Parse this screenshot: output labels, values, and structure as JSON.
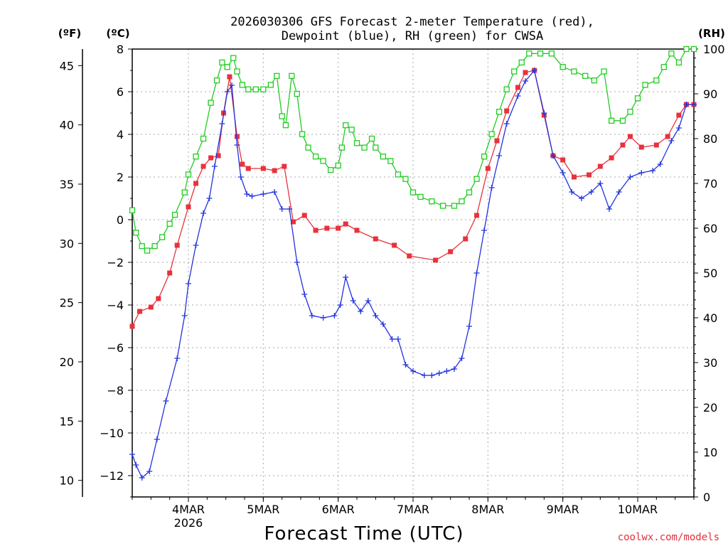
{
  "chart_data": {
    "type": "line",
    "title_line1": "2026030306 GFS Forecast 2-meter Temperature (red),",
    "title_line2": "Dewpoint (blue), RH (green) for CWSA",
    "xlabel": "Forecast Time (UTC)",
    "credit": "coolwx.com/models",
    "unit_left_f": "(ºF)",
    "unit_left_c": "(ºC)",
    "unit_right": "(RH)",
    "xlim_days": [
      3.25,
      10.75
    ],
    "x_ticks": [
      {
        "day": 4,
        "label": "4MAR",
        "sublabel": "2026"
      },
      {
        "day": 5,
        "label": "5MAR",
        "sublabel": ""
      },
      {
        "day": 6,
        "label": "6MAR",
        "sublabel": ""
      },
      {
        "day": 7,
        "label": "7MAR",
        "sublabel": ""
      },
      {
        "day": 8,
        "label": "8MAR",
        "sublabel": ""
      },
      {
        "day": 9,
        "label": "9MAR",
        "sublabel": ""
      },
      {
        "day": 10,
        "label": "10MAR",
        "sublabel": ""
      }
    ],
    "y_celsius": {
      "min": -13,
      "max": 8,
      "ticks": [
        8,
        6,
        4,
        2,
        0,
        -2,
        -4,
        -6,
        -8,
        -10,
        -12
      ]
    },
    "y_fahrenheit_ticks": [
      45,
      40,
      35,
      30,
      25,
      20,
      15,
      10
    ],
    "y_rh": {
      "min": 0,
      "max": 100,
      "ticks": [
        100,
        90,
        80,
        70,
        60,
        50,
        40,
        30,
        20,
        10,
        0
      ]
    },
    "series": [
      {
        "name": "Temperature",
        "units": "C",
        "color": "#e8323c",
        "marker": "square-filled",
        "points": [
          [
            3.25,
            -5.0
          ],
          [
            3.35,
            -4.3
          ],
          [
            3.5,
            -4.1
          ],
          [
            3.6,
            -3.7
          ],
          [
            3.75,
            -2.5
          ],
          [
            3.85,
            -1.2
          ],
          [
            4.0,
            0.6
          ],
          [
            4.1,
            1.7
          ],
          [
            4.2,
            2.5
          ],
          [
            4.3,
            2.9
          ],
          [
            4.4,
            3.0
          ],
          [
            4.47,
            5.0
          ],
          [
            4.55,
            6.7
          ],
          [
            4.65,
            3.9
          ],
          [
            4.72,
            2.6
          ],
          [
            4.8,
            2.4
          ],
          [
            5.0,
            2.4
          ],
          [
            5.15,
            2.3
          ],
          [
            5.28,
            2.5
          ],
          [
            5.4,
            -0.1
          ],
          [
            5.55,
            0.2
          ],
          [
            5.7,
            -0.5
          ],
          [
            5.85,
            -0.4
          ],
          [
            6.0,
            -0.4
          ],
          [
            6.1,
            -0.2
          ],
          [
            6.25,
            -0.5
          ],
          [
            6.5,
            -0.9
          ],
          [
            6.75,
            -1.2
          ],
          [
            6.95,
            -1.7
          ],
          [
            7.3,
            -1.9
          ],
          [
            7.5,
            -1.5
          ],
          [
            7.7,
            -0.9
          ],
          [
            7.85,
            0.2
          ],
          [
            8.0,
            2.4
          ],
          [
            8.12,
            3.7
          ],
          [
            8.25,
            5.1
          ],
          [
            8.4,
            6.2
          ],
          [
            8.5,
            6.9
          ],
          [
            8.62,
            7.0
          ],
          [
            8.75,
            4.9
          ],
          [
            8.87,
            3.0
          ],
          [
            9.0,
            2.8
          ],
          [
            9.15,
            2.0
          ],
          [
            9.35,
            2.1
          ],
          [
            9.5,
            2.5
          ],
          [
            9.65,
            2.9
          ],
          [
            9.8,
            3.5
          ],
          [
            9.9,
            3.9
          ],
          [
            10.05,
            3.4
          ],
          [
            10.25,
            3.5
          ],
          [
            10.4,
            3.9
          ],
          [
            10.55,
            4.9
          ],
          [
            10.65,
            5.4
          ],
          [
            10.75,
            5.4
          ]
        ]
      },
      {
        "name": "Dewpoint",
        "units": "C",
        "color": "#2233dd",
        "marker": "plus",
        "points": [
          [
            3.25,
            -11.0
          ],
          [
            3.3,
            -11.5
          ],
          [
            3.38,
            -12.1
          ],
          [
            3.48,
            -11.8
          ],
          [
            3.58,
            -10.3
          ],
          [
            3.7,
            -8.5
          ],
          [
            3.85,
            -6.5
          ],
          [
            3.95,
            -4.5
          ],
          [
            4.0,
            -3.0
          ],
          [
            4.1,
            -1.2
          ],
          [
            4.2,
            0.3
          ],
          [
            4.28,
            1.0
          ],
          [
            4.35,
            2.5
          ],
          [
            4.45,
            4.5
          ],
          [
            4.52,
            6.0
          ],
          [
            4.58,
            6.3
          ],
          [
            4.65,
            3.5
          ],
          [
            4.7,
            2.0
          ],
          [
            4.78,
            1.2
          ],
          [
            4.85,
            1.1
          ],
          [
            5.0,
            1.2
          ],
          [
            5.15,
            1.3
          ],
          [
            5.25,
            0.5
          ],
          [
            5.35,
            0.5
          ],
          [
            5.45,
            -2.0
          ],
          [
            5.55,
            -3.5
          ],
          [
            5.65,
            -4.5
          ],
          [
            5.8,
            -4.6
          ],
          [
            5.95,
            -4.5
          ],
          [
            6.03,
            -4.0
          ],
          [
            6.1,
            -2.7
          ],
          [
            6.2,
            -3.8
          ],
          [
            6.3,
            -4.3
          ],
          [
            6.4,
            -3.8
          ],
          [
            6.5,
            -4.5
          ],
          [
            6.6,
            -4.9
          ],
          [
            6.72,
            -5.6
          ],
          [
            6.8,
            -5.6
          ],
          [
            6.9,
            -6.8
          ],
          [
            7.0,
            -7.1
          ],
          [
            7.15,
            -7.3
          ],
          [
            7.25,
            -7.3
          ],
          [
            7.35,
            -7.2
          ],
          [
            7.45,
            -7.1
          ],
          [
            7.55,
            -7.0
          ],
          [
            7.65,
            -6.5
          ],
          [
            7.75,
            -5.0
          ],
          [
            7.85,
            -2.5
          ],
          [
            7.95,
            -0.5
          ],
          [
            8.05,
            1.5
          ],
          [
            8.15,
            3.0
          ],
          [
            8.25,
            4.5
          ],
          [
            8.4,
            5.8
          ],
          [
            8.5,
            6.5
          ],
          [
            8.62,
            7.0
          ],
          [
            8.75,
            5.0
          ],
          [
            8.87,
            3.0
          ],
          [
            9.0,
            2.2
          ],
          [
            9.12,
            1.3
          ],
          [
            9.25,
            1.0
          ],
          [
            9.38,
            1.3
          ],
          [
            9.5,
            1.7
          ],
          [
            9.62,
            0.5
          ],
          [
            9.75,
            1.3
          ],
          [
            9.9,
            2.0
          ],
          [
            10.05,
            2.2
          ],
          [
            10.2,
            2.3
          ],
          [
            10.3,
            2.6
          ],
          [
            10.45,
            3.7
          ],
          [
            10.55,
            4.3
          ],
          [
            10.65,
            5.4
          ],
          [
            10.75,
            5.4
          ]
        ]
      },
      {
        "name": "RH",
        "units": "%",
        "color": "#22cc22",
        "marker": "square-open",
        "points": [
          [
            3.25,
            64
          ],
          [
            3.3,
            59
          ],
          [
            3.38,
            56
          ],
          [
            3.45,
            55
          ],
          [
            3.55,
            56
          ],
          [
            3.65,
            58
          ],
          [
            3.75,
            61
          ],
          [
            3.82,
            63
          ],
          [
            3.95,
            68
          ],
          [
            4.0,
            72
          ],
          [
            4.1,
            76
          ],
          [
            4.2,
            80
          ],
          [
            4.3,
            88
          ],
          [
            4.38,
            93
          ],
          [
            4.45,
            97
          ],
          [
            4.52,
            96
          ],
          [
            4.6,
            98
          ],
          [
            4.65,
            95
          ],
          [
            4.72,
            92
          ],
          [
            4.8,
            91
          ],
          [
            4.9,
            91
          ],
          [
            5.0,
            91
          ],
          [
            5.1,
            92
          ],
          [
            5.18,
            94
          ],
          [
            5.25,
            85
          ],
          [
            5.3,
            83
          ],
          [
            5.38,
            94
          ],
          [
            5.45,
            90
          ],
          [
            5.52,
            81
          ],
          [
            5.6,
            78
          ],
          [
            5.7,
            76
          ],
          [
            5.8,
            75
          ],
          [
            5.9,
            73
          ],
          [
            6.0,
            74
          ],
          [
            6.05,
            78
          ],
          [
            6.1,
            83
          ],
          [
            6.18,
            82
          ],
          [
            6.25,
            79
          ],
          [
            6.35,
            78
          ],
          [
            6.45,
            80
          ],
          [
            6.5,
            78
          ],
          [
            6.6,
            76
          ],
          [
            6.7,
            75
          ],
          [
            6.8,
            72
          ],
          [
            6.9,
            71
          ],
          [
            7.0,
            68
          ],
          [
            7.1,
            67
          ],
          [
            7.25,
            66
          ],
          [
            7.4,
            65
          ],
          [
            7.55,
            65
          ],
          [
            7.65,
            66
          ],
          [
            7.75,
            68
          ],
          [
            7.85,
            71
          ],
          [
            7.95,
            76
          ],
          [
            8.05,
            81
          ],
          [
            8.15,
            86
          ],
          [
            8.25,
            91
          ],
          [
            8.35,
            95
          ],
          [
            8.45,
            97
          ],
          [
            8.55,
            99
          ],
          [
            8.7,
            99
          ],
          [
            8.85,
            99
          ],
          [
            9.0,
            96
          ],
          [
            9.15,
            95
          ],
          [
            9.3,
            94
          ],
          [
            9.42,
            93
          ],
          [
            9.55,
            95
          ],
          [
            9.65,
            84
          ],
          [
            9.8,
            84
          ],
          [
            9.9,
            86
          ],
          [
            10.0,
            89
          ],
          [
            10.1,
            92
          ],
          [
            10.25,
            93
          ],
          [
            10.35,
            96
          ],
          [
            10.45,
            99
          ],
          [
            10.55,
            97
          ],
          [
            10.65,
            100
          ],
          [
            10.75,
            100
          ]
        ]
      }
    ]
  }
}
